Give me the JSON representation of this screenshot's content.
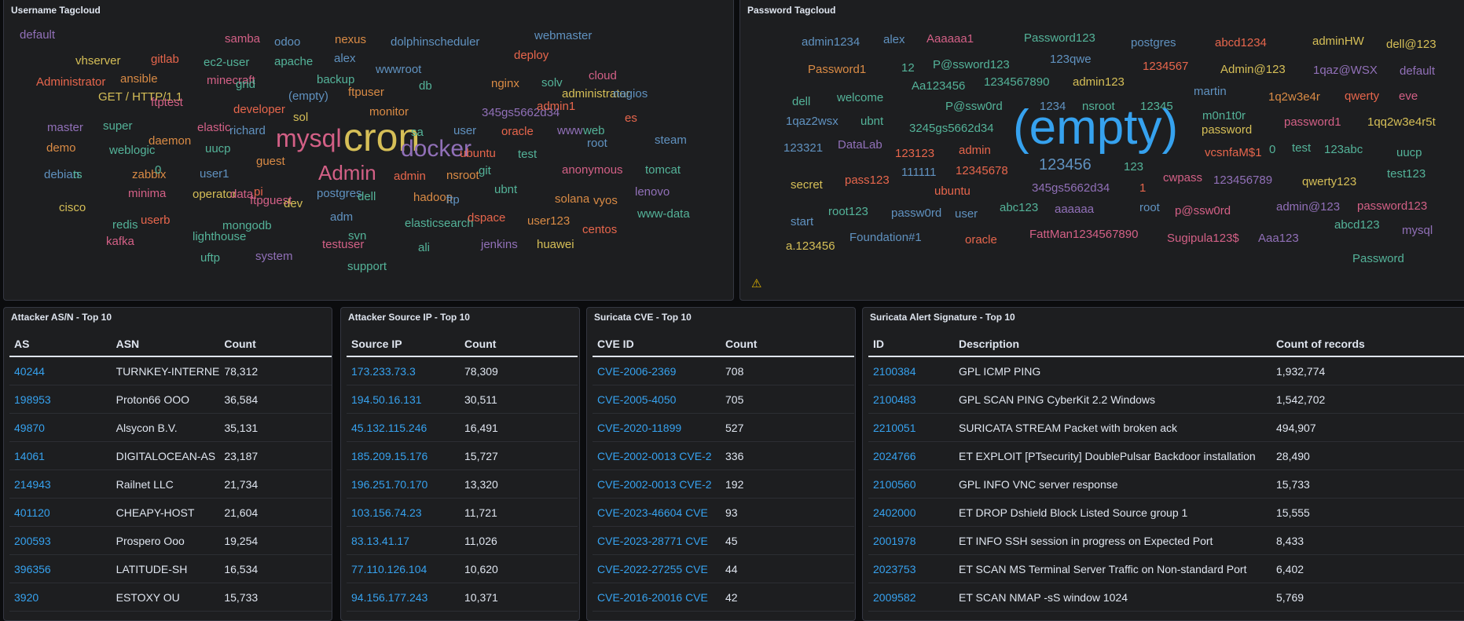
{
  "panels": {
    "username_cloud_title": "Username Tagcloud",
    "password_cloud_title": "Password Tagcloud",
    "asn_title": "Attacker AS/N - Top 10",
    "ip_title": "Attacker Source IP - Top 10",
    "cve_title": "Suricata CVE - Top 10",
    "sig_title": "Suricata Alert Signature - Top 10"
  },
  "icons": {
    "warning": "warning-icon"
  },
  "username_words": [
    {
      "t": "samba",
      "c": "#d36086"
    },
    {
      "t": "odoo",
      "c": "#6092c0"
    },
    {
      "t": "nexus",
      "c": "#da8b45"
    },
    {
      "t": "dolphinscheduler",
      "c": "#6092c0"
    },
    {
      "t": "webmaster",
      "c": "#6092c0"
    },
    {
      "t": "vhserver",
      "c": "#d6bf57"
    },
    {
      "t": "gitlab",
      "c": "#e7664c"
    },
    {
      "t": "ec2-user",
      "c": "#54b399"
    },
    {
      "t": "apache",
      "c": "#54b399"
    },
    {
      "t": "alex",
      "c": "#6092c0"
    },
    {
      "t": "wwwroot",
      "c": "#6092c0"
    },
    {
      "t": "deploy",
      "c": "#e7664c"
    },
    {
      "t": "Administrator",
      "c": "#e7664c"
    },
    {
      "t": "ansible",
      "c": "#da8b45"
    },
    {
      "t": "minecraft",
      "c": "#d36086"
    },
    {
      "t": "grid",
      "c": "#54b399"
    },
    {
      "t": "backup",
      "c": "#54b399"
    },
    {
      "t": "db",
      "c": "#54b399"
    },
    {
      "t": "nginx",
      "c": "#da8b45"
    },
    {
      "t": "solv",
      "c": "#54b399"
    },
    {
      "t": "cloud",
      "c": "#d36086"
    },
    {
      "t": "GET / HTTP/1.1",
      "c": "#d6bf57"
    },
    {
      "t": "ftptest",
      "c": "#d36086"
    },
    {
      "t": "developer",
      "c": "#e7664c"
    },
    {
      "t": "(empty)",
      "c": "#6092c0"
    },
    {
      "t": "ftpuser",
      "c": "#da8b45"
    },
    {
      "t": "administrator",
      "c": "#d6bf57"
    },
    {
      "t": "nagios",
      "c": "#6092c0"
    },
    {
      "t": "master",
      "c": "#9170b8"
    },
    {
      "t": "super",
      "c": "#54b399"
    },
    {
      "t": "elastic",
      "c": "#d36086"
    },
    {
      "t": "sol",
      "c": "#d6bf57"
    },
    {
      "t": "monitor",
      "c": "#da8b45"
    },
    {
      "t": "345gs5662d34",
      "c": "#9170b8"
    },
    {
      "t": "admin1",
      "c": "#e7664c"
    },
    {
      "t": "es",
      "c": "#e7664c"
    },
    {
      "t": "richard",
      "c": "#6092c0"
    },
    {
      "t": "mysql",
      "c": "#d36086"
    },
    {
      "t": "cron",
      "c": "#d6bf57"
    },
    {
      "t": "sa",
      "c": "#54b399"
    },
    {
      "t": "user",
      "c": "#6092c0"
    },
    {
      "t": "oracle",
      "c": "#e7664c"
    },
    {
      "t": "www",
      "c": "#9170b8"
    },
    {
      "t": "web",
      "c": "#54b399"
    },
    {
      "t": "demo",
      "c": "#da8b45"
    },
    {
      "t": "daemon",
      "c": "#da8b45"
    },
    {
      "t": "docker",
      "c": "#9170b8"
    },
    {
      "t": "root",
      "c": "#6092c0"
    },
    {
      "t": "steam",
      "c": "#6092c0"
    },
    {
      "t": "weblogic",
      "c": "#54b399"
    },
    {
      "t": "uucp",
      "c": "#54b399"
    },
    {
      "t": "guest",
      "c": "#da8b45"
    },
    {
      "t": "ubuntu",
      "c": "#e7664c"
    },
    {
      "t": "test",
      "c": "#54b399"
    },
    {
      "t": "debian",
      "c": "#6092c0"
    },
    {
      "t": "ts",
      "c": "#54b399"
    },
    {
      "t": "zabbix",
      "c": "#da8b45"
    },
    {
      "t": "0",
      "c": "#54b399"
    },
    {
      "t": "user1",
      "c": "#6092c0"
    },
    {
      "t": "Admin",
      "c": "#d36086"
    },
    {
      "t": "admin",
      "c": "#e7664c"
    },
    {
      "t": "nsroot",
      "c": "#da8b45"
    },
    {
      "t": "git",
      "c": "#54b399"
    },
    {
      "t": "anonymous",
      "c": "#d36086"
    },
    {
      "t": "tomcat",
      "c": "#54b399"
    },
    {
      "t": "minima",
      "c": "#d36086"
    },
    {
      "t": "operator",
      "c": "#d6bf57"
    },
    {
      "t": "data",
      "c": "#d36086"
    },
    {
      "t": "pi",
      "c": "#e7664c"
    },
    {
      "t": "postgres",
      "c": "#6092c0"
    },
    {
      "t": "ubnt",
      "c": "#54b399"
    },
    {
      "t": "lenovo",
      "c": "#9170b8"
    },
    {
      "t": "cisco",
      "c": "#d6bf57"
    },
    {
      "t": "ftpguest",
      "c": "#d36086"
    },
    {
      "t": "dev",
      "c": "#d6bf57"
    },
    {
      "t": "dell",
      "c": "#54b399"
    },
    {
      "t": "hadoop",
      "c": "#da8b45"
    },
    {
      "t": "ftp",
      "c": "#6092c0"
    },
    {
      "t": "solana",
      "c": "#da8b45"
    },
    {
      "t": "vyos",
      "c": "#da8b45"
    },
    {
      "t": "userb",
      "c": "#e7664c"
    },
    {
      "t": "redis",
      "c": "#54b399"
    },
    {
      "t": "adm",
      "c": "#6092c0"
    },
    {
      "t": "www-data",
      "c": "#54b399"
    },
    {
      "t": "mongodb",
      "c": "#54b399"
    },
    {
      "t": "elasticsearch",
      "c": "#54b399"
    },
    {
      "t": "dspace",
      "c": "#e7664c"
    },
    {
      "t": "user123",
      "c": "#da8b45"
    },
    {
      "t": "centos",
      "c": "#e7664c"
    },
    {
      "t": "kafka",
      "c": "#d36086"
    },
    {
      "t": "lighthouse",
      "c": "#54b399"
    },
    {
      "t": "svn",
      "c": "#54b399"
    },
    {
      "t": "testuser",
      "c": "#d36086"
    },
    {
      "t": "ali",
      "c": "#54b399"
    },
    {
      "t": "jenkins",
      "c": "#9170b8"
    },
    {
      "t": "huawei",
      "c": "#d6bf57"
    },
    {
      "t": "uftp",
      "c": "#54b399"
    },
    {
      "t": "system",
      "c": "#9170b8"
    },
    {
      "t": "support",
      "c": "#54b399"
    },
    {
      "t": "default",
      "c": "#9170b8"
    }
  ],
  "password_words": [
    {
      "t": "admin1234",
      "c": "#6092c0"
    },
    {
      "t": "alex",
      "c": "#6092c0"
    },
    {
      "t": "Aaaaaa1",
      "c": "#d36086"
    },
    {
      "t": "Password123",
      "c": "#54b399"
    },
    {
      "t": "postgres",
      "c": "#6092c0"
    },
    {
      "t": "abcd1234",
      "c": "#e7664c"
    },
    {
      "t": "adminHW",
      "c": "#d6bf57"
    },
    {
      "t": "dell@123",
      "c": "#d6bf57"
    },
    {
      "t": "Password1",
      "c": "#da8b45"
    },
    {
      "t": "12",
      "c": "#54b399"
    },
    {
      "t": "P@ssword123",
      "c": "#54b399"
    },
    {
      "t": "123qwe",
      "c": "#6092c0"
    },
    {
      "t": "1234567",
      "c": "#e7664c"
    },
    {
      "t": "Admin@123",
      "c": "#d6bf57"
    },
    {
      "t": "1qaz@WSX",
      "c": "#9170b8"
    },
    {
      "t": "default",
      "c": "#9170b8"
    },
    {
      "t": "Aa123456",
      "c": "#54b399"
    },
    {
      "t": "1234567890",
      "c": "#54b399"
    },
    {
      "t": "admin123",
      "c": "#d6bf57"
    },
    {
      "t": "martin",
      "c": "#6092c0"
    },
    {
      "t": "1q2w3e4r",
      "c": "#da8b45"
    },
    {
      "t": "qwerty",
      "c": "#e7664c"
    },
    {
      "t": "eve",
      "c": "#d36086"
    },
    {
      "t": "dell",
      "c": "#54b399"
    },
    {
      "t": "welcome",
      "c": "#54b399"
    },
    {
      "t": "P@ssw0rd",
      "c": "#54b399"
    },
    {
      "t": "1234",
      "c": "#6092c0"
    },
    {
      "t": "nsroot",
      "c": "#54b399"
    },
    {
      "t": "12345",
      "c": "#54b399"
    },
    {
      "t": "m0n1t0r",
      "c": "#54b399"
    },
    {
      "t": "password1",
      "c": "#d36086"
    },
    {
      "t": "1qq2w3e4r5t",
      "c": "#d6bf57"
    },
    {
      "t": "1qaz2wsx",
      "c": "#6092c0"
    },
    {
      "t": "ubnt",
      "c": "#54b399"
    },
    {
      "t": "3245gs5662d34",
      "c": "#54b399"
    },
    {
      "t": "(empty)",
      "c": "#36a2ef"
    },
    {
      "t": "password",
      "c": "#d6bf57"
    },
    {
      "t": "123321",
      "c": "#6092c0"
    },
    {
      "t": "DataLab",
      "c": "#9170b8"
    },
    {
      "t": "123123",
      "c": "#e7664c"
    },
    {
      "t": "admin",
      "c": "#e7664c"
    },
    {
      "t": "vcsnfaM$1",
      "c": "#e7664c"
    },
    {
      "t": "0",
      "c": "#54b399"
    },
    {
      "t": "test",
      "c": "#54b399"
    },
    {
      "t": "123abc",
      "c": "#54b399"
    },
    {
      "t": "uucp",
      "c": "#54b399"
    },
    {
      "t": "111111",
      "c": "#6092c0"
    },
    {
      "t": "12345678",
      "c": "#e7664c"
    },
    {
      "t": "123456",
      "c": "#6092c0"
    },
    {
      "t": "123",
      "c": "#54b399"
    },
    {
      "t": "cwpass",
      "c": "#d36086"
    },
    {
      "t": "123456789",
      "c": "#9170b8"
    },
    {
      "t": "qwerty123",
      "c": "#d6bf57"
    },
    {
      "t": "test123",
      "c": "#54b399"
    },
    {
      "t": "secret",
      "c": "#d6bf57"
    },
    {
      "t": "pass123",
      "c": "#e7664c"
    },
    {
      "t": "ubuntu",
      "c": "#e7664c"
    },
    {
      "t": "345gs5662d34",
      "c": "#9170b8"
    },
    {
      "t": "1",
      "c": "#e7664c"
    },
    {
      "t": "root123",
      "c": "#54b399"
    },
    {
      "t": "passw0rd",
      "c": "#6092c0"
    },
    {
      "t": "user",
      "c": "#6092c0"
    },
    {
      "t": "abc123",
      "c": "#54b399"
    },
    {
      "t": "aaaaaa",
      "c": "#9170b8"
    },
    {
      "t": "root",
      "c": "#6092c0"
    },
    {
      "t": "p@ssw0rd",
      "c": "#d36086"
    },
    {
      "t": "admin@123",
      "c": "#9170b8"
    },
    {
      "t": "password123",
      "c": "#d36086"
    },
    {
      "t": "start",
      "c": "#6092c0"
    },
    {
      "t": "abcd123",
      "c": "#54b399"
    },
    {
      "t": "mysql",
      "c": "#9170b8"
    },
    {
      "t": "a.123456",
      "c": "#d6bf57"
    },
    {
      "t": "Foundation#1",
      "c": "#6092c0"
    },
    {
      "t": "oracle",
      "c": "#e7664c"
    },
    {
      "t": "FattMan1234567890",
      "c": "#d36086"
    },
    {
      "t": "Sugipula123$",
      "c": "#d36086"
    },
    {
      "t": "Aaa123",
      "c": "#9170b8"
    },
    {
      "t": "Password",
      "c": "#54b399"
    }
  ],
  "asn_table": {
    "headers": [
      "AS",
      "ASN",
      "Count"
    ],
    "rows": [
      [
        "40244",
        "TURNKEY-INTERNE",
        "78,312"
      ],
      [
        "198953",
        "Proton66 OOO",
        "36,584"
      ],
      [
        "49870",
        "Alsycon B.V.",
        "35,131"
      ],
      [
        "14061",
        "DIGITALOCEAN-AS",
        "23,187"
      ],
      [
        "214943",
        "Railnet LLC",
        "21,734"
      ],
      [
        "401120",
        "CHEAPY-HOST",
        "21,604"
      ],
      [
        "200593",
        "Prospero Ooo",
        "19,254"
      ],
      [
        "396356",
        "LATITUDE-SH",
        "16,534"
      ],
      [
        "3920",
        "ESTOXY OU",
        "15,733"
      ]
    ]
  },
  "ip_table": {
    "headers": [
      "Source IP",
      "Count"
    ],
    "rows": [
      [
        "173.233.73.3",
        "78,309"
      ],
      [
        "194.50.16.131",
        "30,511"
      ],
      [
        "45.132.115.246",
        "16,491"
      ],
      [
        "185.209.15.176",
        "15,727"
      ],
      [
        "196.251.70.170",
        "13,320"
      ],
      [
        "103.156.74.23",
        "11,721"
      ],
      [
        "83.13.41.17",
        "11,026"
      ],
      [
        "77.110.126.104",
        "10,620"
      ],
      [
        "94.156.177.243",
        "10,371"
      ]
    ]
  },
  "cve_table": {
    "headers": [
      "CVE ID",
      "Count"
    ],
    "rows": [
      [
        "CVE-2006-2369",
        "708"
      ],
      [
        "CVE-2005-4050",
        "705"
      ],
      [
        "CVE-2020-11899",
        "527"
      ],
      [
        "CVE-2002-0013 CVE-2",
        "336"
      ],
      [
        "CVE-2002-0013 CVE-2",
        "192"
      ],
      [
        "CVE-2023-46604 CVE",
        "93"
      ],
      [
        "CVE-2023-28771 CVE",
        "45"
      ],
      [
        "CVE-2022-27255 CVE",
        "44"
      ],
      [
        "CVE-2016-20016 CVE",
        "42"
      ]
    ]
  },
  "sig_table": {
    "headers": [
      "ID",
      "Description",
      "Count of records"
    ],
    "rows": [
      [
        "2100384",
        "GPL ICMP PING",
        "1,932,774"
      ],
      [
        "2100483",
        "GPL SCAN PING CyberKit 2.2 Windows",
        "1,542,702"
      ],
      [
        "2210051",
        "SURICATA STREAM Packet with broken ack",
        "494,907"
      ],
      [
        "2024766",
        "ET EXPLOIT [PTsecurity] DoublePulsar Backdoor installation",
        "28,490"
      ],
      [
        "2100560",
        "GPL INFO VNC server response",
        "15,733"
      ],
      [
        "2402000",
        "ET DROP Dshield Block Listed Source group 1",
        "15,555"
      ],
      [
        "2001978",
        "ET INFO SSH session in progress on Expected Port",
        "8,433"
      ],
      [
        "2023753",
        "ET SCAN MS Terminal Server Traffic on Non-standard Port",
        "6,402"
      ],
      [
        "2009582",
        "ET SCAN NMAP -sS window 1024",
        "5,769"
      ]
    ]
  }
}
